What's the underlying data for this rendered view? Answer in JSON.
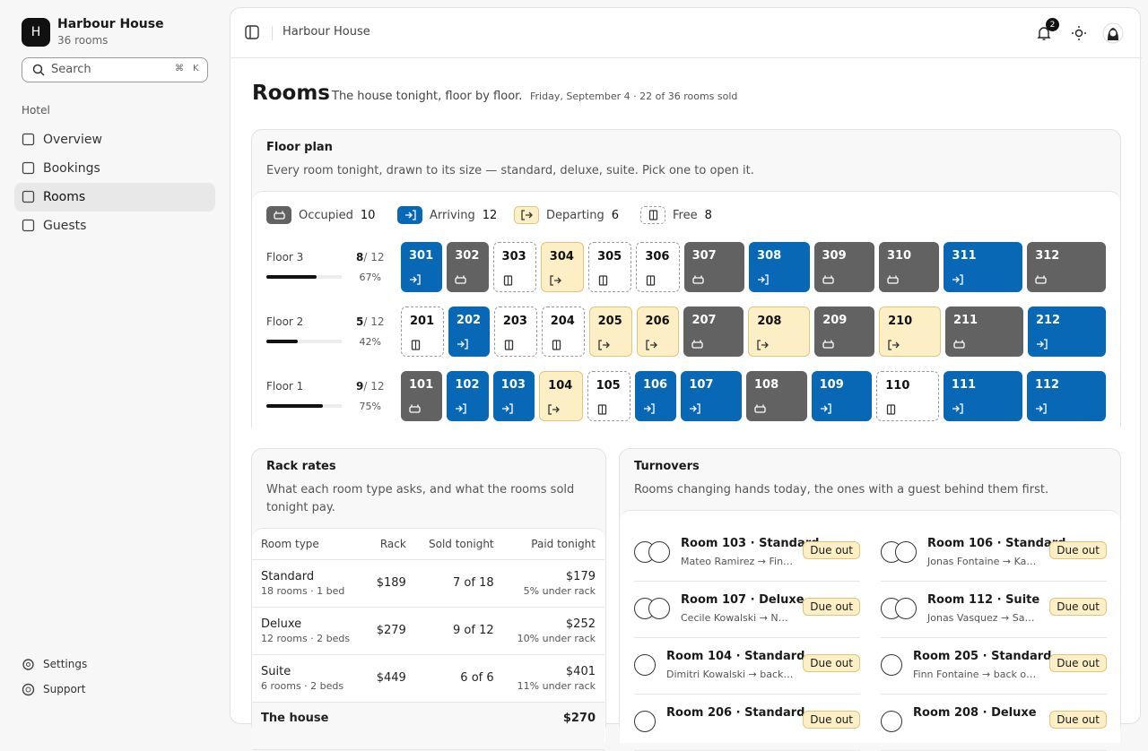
{
  "sidebar": {
    "brand": {
      "initial": "H",
      "name": "Harbour House",
      "sub": "36 rooms"
    },
    "search": {
      "placeholder": "Search",
      "keys": [
        "⌘",
        "K"
      ]
    },
    "section": "Hotel",
    "nav": [
      {
        "label": "Overview",
        "active": false
      },
      {
        "label": "Bookings",
        "active": false
      },
      {
        "label": "Rooms",
        "active": true
      },
      {
        "label": "Guests",
        "active": false
      }
    ],
    "footer": [
      "Settings",
      "Support"
    ]
  },
  "topbar": {
    "breadcrumb": "Harbour House",
    "notifications": "2"
  },
  "header": {
    "title": "Rooms",
    "subtitle": "The house tonight, floor by floor.",
    "meta": "Friday, September 4 · 22 of 36 rooms sold"
  },
  "floor_plan": {
    "title": "Floor plan",
    "description": "Every room tonight, drawn to its size — standard, deluxe, suite. Pick one to open it.",
    "legend": [
      {
        "status": "occupied",
        "label": "Occupied",
        "count": "10"
      },
      {
        "status": "arriving",
        "label": "Arriving",
        "count": "12"
      },
      {
        "status": "departing",
        "label": "Departing",
        "count": "6"
      },
      {
        "status": "free",
        "label": "Free",
        "count": "8"
      }
    ],
    "floors": [
      {
        "name": "Floor 3",
        "sold": 8,
        "total": 12,
        "percent": "67%",
        "rooms": [
          {
            "number": "301",
            "status": "arriving",
            "size": "standard"
          },
          {
            "number": "302",
            "status": "occupied",
            "size": "standard"
          },
          {
            "number": "303",
            "status": "free",
            "size": "standard"
          },
          {
            "number": "304",
            "status": "departing",
            "size": "standard"
          },
          {
            "number": "305",
            "status": "free",
            "size": "standard"
          },
          {
            "number": "306",
            "status": "free",
            "size": "standard"
          },
          {
            "number": "307",
            "status": "occupied",
            "size": "deluxe"
          },
          {
            "number": "308",
            "status": "arriving",
            "size": "deluxe"
          },
          {
            "number": "309",
            "status": "occupied",
            "size": "deluxe"
          },
          {
            "number": "310",
            "status": "occupied",
            "size": "deluxe"
          },
          {
            "number": "311",
            "status": "arriving",
            "size": "suite"
          },
          {
            "number": "312",
            "status": "occupied",
            "size": "suite"
          }
        ]
      },
      {
        "name": "Floor 2",
        "sold": 5,
        "total": 12,
        "percent": "42%",
        "rooms": [
          {
            "number": "201",
            "status": "free",
            "size": "standard"
          },
          {
            "number": "202",
            "status": "arriving",
            "size": "standard"
          },
          {
            "number": "203",
            "status": "free",
            "size": "standard"
          },
          {
            "number": "204",
            "status": "free",
            "size": "standard"
          },
          {
            "number": "205",
            "status": "departing",
            "size": "standard"
          },
          {
            "number": "206",
            "status": "departing",
            "size": "standard"
          },
          {
            "number": "207",
            "status": "occupied",
            "size": "deluxe"
          },
          {
            "number": "208",
            "status": "departing",
            "size": "deluxe"
          },
          {
            "number": "209",
            "status": "occupied",
            "size": "deluxe"
          },
          {
            "number": "210",
            "status": "departing",
            "size": "deluxe"
          },
          {
            "number": "211",
            "status": "occupied",
            "size": "suite"
          },
          {
            "number": "212",
            "status": "arriving",
            "size": "suite"
          }
        ]
      },
      {
        "name": "Floor 1",
        "sold": 9,
        "total": 12,
        "percent": "75%",
        "rooms": [
          {
            "number": "101",
            "status": "occupied",
            "size": "standard"
          },
          {
            "number": "102",
            "status": "arriving",
            "size": "standard"
          },
          {
            "number": "103",
            "status": "arriving",
            "size": "standard"
          },
          {
            "number": "104",
            "status": "departing",
            "size": "standard"
          },
          {
            "number": "105",
            "status": "free",
            "size": "standard"
          },
          {
            "number": "106",
            "status": "arriving",
            "size": "standard"
          },
          {
            "number": "107",
            "status": "arriving",
            "size": "deluxe"
          },
          {
            "number": "108",
            "status": "occupied",
            "size": "deluxe"
          },
          {
            "number": "109",
            "status": "arriving",
            "size": "deluxe"
          },
          {
            "number": "110",
            "status": "free",
            "size": "deluxe"
          },
          {
            "number": "111",
            "status": "arriving",
            "size": "suite"
          },
          {
            "number": "112",
            "status": "arriving",
            "size": "suite"
          }
        ]
      }
    ]
  },
  "rack_rates": {
    "title": "Rack rates",
    "description": "What each room type asks, and what the rooms sold tonight pay.",
    "columns": [
      "Room type",
      "Rack",
      "Sold tonight",
      "Paid tonight"
    ],
    "rows": [
      {
        "type": "Standard",
        "detail": "18 rooms · 1 bed",
        "rack": "$189",
        "sold": "7 of 18",
        "paid": "$179",
        "note": "5% under rack"
      },
      {
        "type": "Deluxe",
        "detail": "12 rooms · 2 beds",
        "rack": "$279",
        "sold": "9 of 12",
        "paid": "$252",
        "note": "10% under rack"
      },
      {
        "type": "Suite",
        "detail": "6 rooms · 2 beds",
        "rack": "$449",
        "sold": "6 of 6",
        "paid": "$401",
        "note": "11% under rack"
      }
    ],
    "total": {
      "type": "The house",
      "paid": "$270"
    }
  },
  "turnovers": {
    "title": "Turnovers",
    "description": "Rooms changing hands today, the ones with a guest behind them first.",
    "items": [
      {
        "room": "Room 103 · Standard",
        "guests": "Mateo Ramirez → Fin…",
        "badge": "Due out",
        "avatars": 2
      },
      {
        "room": "Room 106 · Standard",
        "guests": "Jonas Fontaine → Ka…",
        "badge": "Due out",
        "avatars": 2
      },
      {
        "room": "Room 107 · Deluxe",
        "guests": "Cecile Kowalski → N…",
        "badge": "Due out",
        "avatars": 2
      },
      {
        "room": "Room 112 · Suite",
        "guests": "Jonas Vasquez → Sa…",
        "badge": "Due out",
        "avatars": 2
      },
      {
        "room": "Room 104 · Standard",
        "guests": "Dimitri Kowalski → back…",
        "badge": "Due out",
        "avatars": 1
      },
      {
        "room": "Room 205 · Standard",
        "guests": "Finn Fontaine → back o…",
        "badge": "Due out",
        "avatars": 1
      },
      {
        "room": "Room 206 · Standard",
        "guests": "",
        "badge": "Due out",
        "avatars": 1
      },
      {
        "room": "Room 208 · Deluxe",
        "guests": "",
        "badge": "Due out",
        "avatars": 1
      }
    ]
  }
}
